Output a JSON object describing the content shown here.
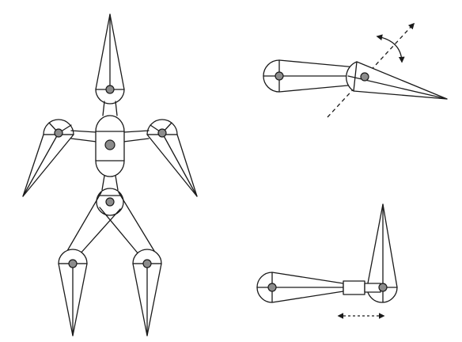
{
  "diagram": {
    "colors": {
      "stroke": "#1a1a1a",
      "joint_fill": "#8c8c8c",
      "background": "#ffffff"
    },
    "figures": [
      {
        "id": "humanoid-figure",
        "kind": "articulated stick figure: head, body, two arms, two legs"
      },
      {
        "id": "revolute-joint-example",
        "kind": "two links joined by a pin joint rotating about a dashed axis"
      },
      {
        "id": "prismatic-joint-example",
        "kind": "two links joined by a sliding (prismatic) joint"
      }
    ],
    "icons": [
      "rotation-arrow-icon",
      "axis-arrow-icon",
      "slide-arrow-icon"
    ]
  }
}
